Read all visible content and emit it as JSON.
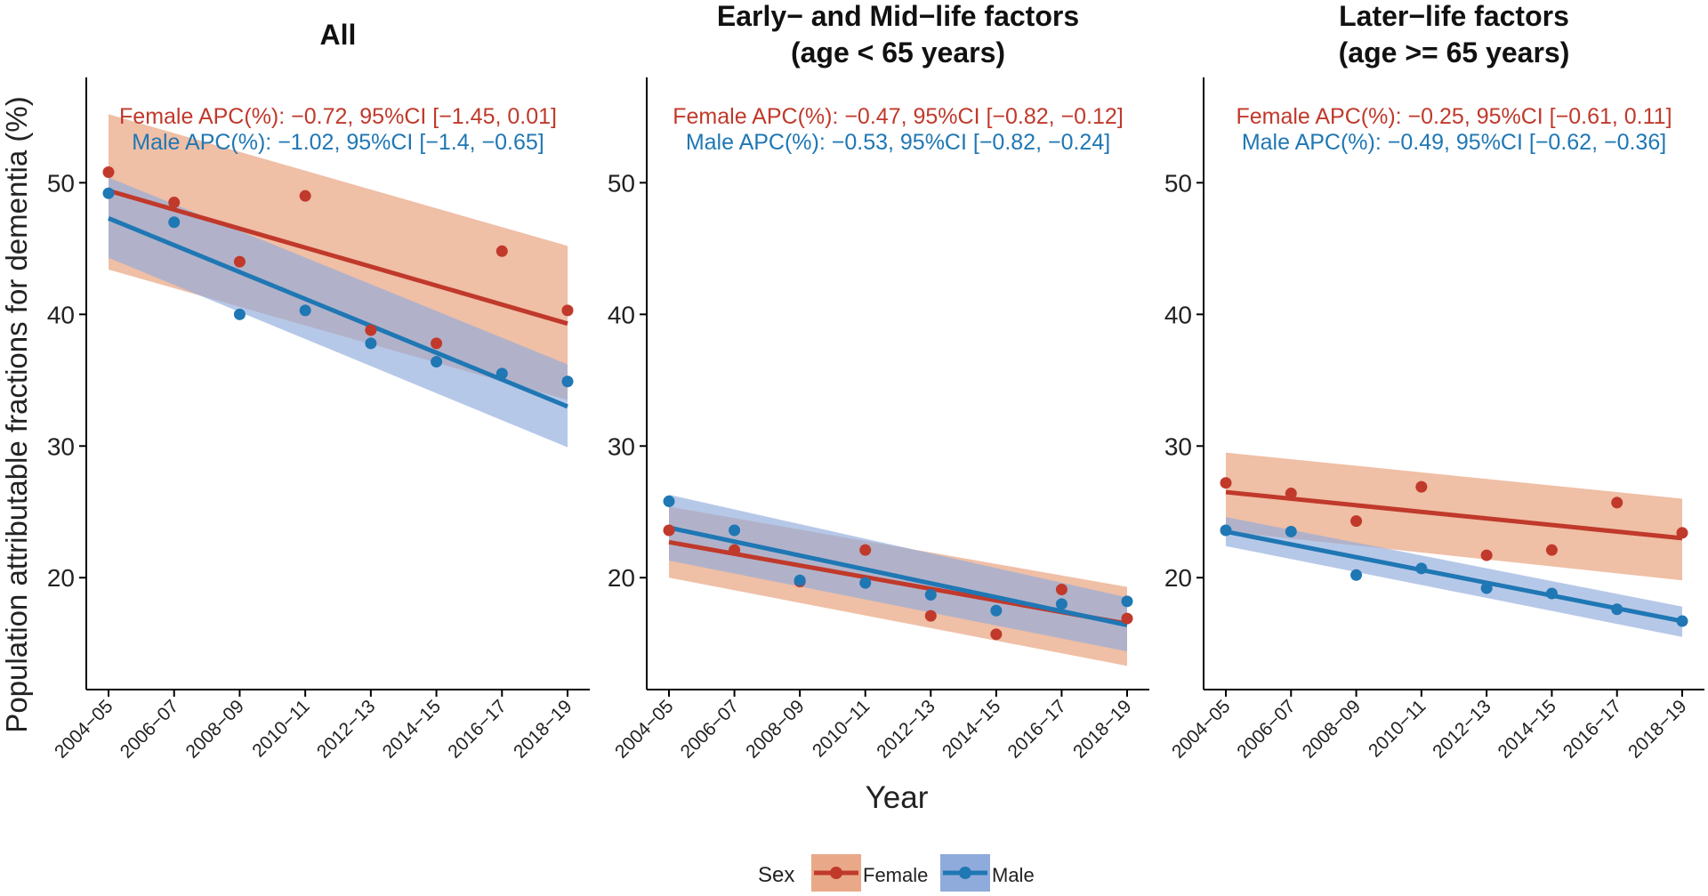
{
  "colors": {
    "female": "#c0392b",
    "male": "#1f77b4",
    "female_band": "#e9a988",
    "male_band": "#8fabdb",
    "axis": "#000000",
    "text": "#222222"
  },
  "figure": {
    "ylabel": "Population attributable fractions for dementia (%)",
    "xlabel": "Year"
  },
  "legend": {
    "title": "Sex",
    "items": [
      "Female",
      "Male"
    ]
  },
  "chart_data": [
    {
      "type": "scatter",
      "title": [
        "All"
      ],
      "annotations": {
        "female": "Female APC(%): −0.72, 95%CI [−1.45, 0.01]",
        "male": "Male APC(%): −1.02, 95%CI [−1.4, −0.65]"
      },
      "categories": [
        "2004−05",
        "2006−07",
        "2008−09",
        "2010−11",
        "2012−13",
        "2014−15",
        "2016−17",
        "2018−19"
      ],
      "ylim": [
        11.5,
        58
      ],
      "yticks": [
        20,
        30,
        40,
        50
      ],
      "series": [
        {
          "name": "Female",
          "x": [
            0,
            1,
            2,
            3,
            4,
            5,
            6,
            7
          ],
          "values": [
            50.8,
            48.5,
            44.0,
            49.0,
            38.8,
            37.8,
            44.8,
            40.3
          ],
          "fit": [
            49.4,
            39.3
          ],
          "ci_lower": [
            43.4,
            33.5
          ],
          "ci_upper": [
            55.2,
            45.2
          ]
        },
        {
          "name": "Male",
          "x": [
            0,
            1,
            2,
            3,
            4,
            5,
            6,
            7
          ],
          "values": [
            49.2,
            47.0,
            40.0,
            40.3,
            37.8,
            36.4,
            35.5,
            34.9
          ],
          "fit": [
            47.3,
            33.0
          ],
          "ci_lower": [
            44.3,
            29.9
          ],
          "ci_upper": [
            50.4,
            36.2
          ]
        }
      ]
    },
    {
      "type": "scatter",
      "title": [
        "Early− and Mid−life factors",
        "(age < 65 years)"
      ],
      "annotations": {
        "female": "Female APC(%): −0.47, 95%CI [−0.82, −0.12]",
        "male": "Male APC(%): −0.53, 95%CI [−0.82, −0.24]"
      },
      "categories": [
        "2004−05",
        "2006−07",
        "2008−09",
        "2010−11",
        "2012−13",
        "2014−15",
        "2016−17",
        "2018−19"
      ],
      "ylim": [
        11.5,
        58
      ],
      "yticks": [
        20,
        30,
        40,
        50
      ],
      "series": [
        {
          "name": "Female",
          "x": [
            0,
            1,
            2,
            3,
            4,
            5,
            6,
            7
          ],
          "values": [
            23.6,
            22.1,
            19.7,
            22.1,
            17.1,
            15.7,
            19.1,
            16.9
          ],
          "fit": [
            22.7,
            16.5
          ],
          "ci_lower": [
            20.0,
            13.3
          ],
          "ci_upper": [
            25.4,
            19.3
          ]
        },
        {
          "name": "Male",
          "x": [
            0,
            1,
            2,
            3,
            4,
            5,
            6,
            7
          ],
          "values": [
            25.8,
            23.6,
            19.8,
            19.6,
            18.7,
            17.5,
            18.0,
            18.2
          ],
          "fit": [
            23.8,
            16.4
          ],
          "ci_lower": [
            21.3,
            14.4
          ],
          "ci_upper": [
            26.3,
            18.5
          ]
        }
      ]
    },
    {
      "type": "scatter",
      "title": [
        "Later−life factors",
        "(age >= 65 years)"
      ],
      "annotations": {
        "female": "Female APC(%): −0.25, 95%CI [−0.61, 0.11]",
        "male": "Male APC(%): −0.49, 95%CI [−0.62, −0.36]"
      },
      "categories": [
        "2004−05",
        "2006−07",
        "2008−09",
        "2010−11",
        "2012−13",
        "2014−15",
        "2016−17",
        "2018−19"
      ],
      "ylim": [
        11.5,
        58
      ],
      "yticks": [
        20,
        30,
        40,
        50
      ],
      "series": [
        {
          "name": "Female",
          "x": [
            0,
            1,
            2,
            3,
            4,
            5,
            6,
            7
          ],
          "values": [
            27.2,
            26.4,
            24.3,
            26.9,
            21.7,
            22.1,
            25.7,
            23.4
          ],
          "fit": [
            26.5,
            23.0
          ],
          "ci_lower": [
            23.5,
            19.8
          ],
          "ci_upper": [
            29.5,
            26.0
          ]
        },
        {
          "name": "Male",
          "x": [
            0,
            1,
            2,
            3,
            4,
            5,
            6,
            7
          ],
          "values": [
            23.6,
            23.5,
            20.2,
            20.7,
            19.2,
            18.8,
            17.6,
            16.7
          ],
          "fit": [
            23.5,
            16.7
          ],
          "ci_lower": [
            22.4,
            15.5
          ],
          "ci_upper": [
            24.6,
            17.8
          ]
        }
      ]
    }
  ]
}
